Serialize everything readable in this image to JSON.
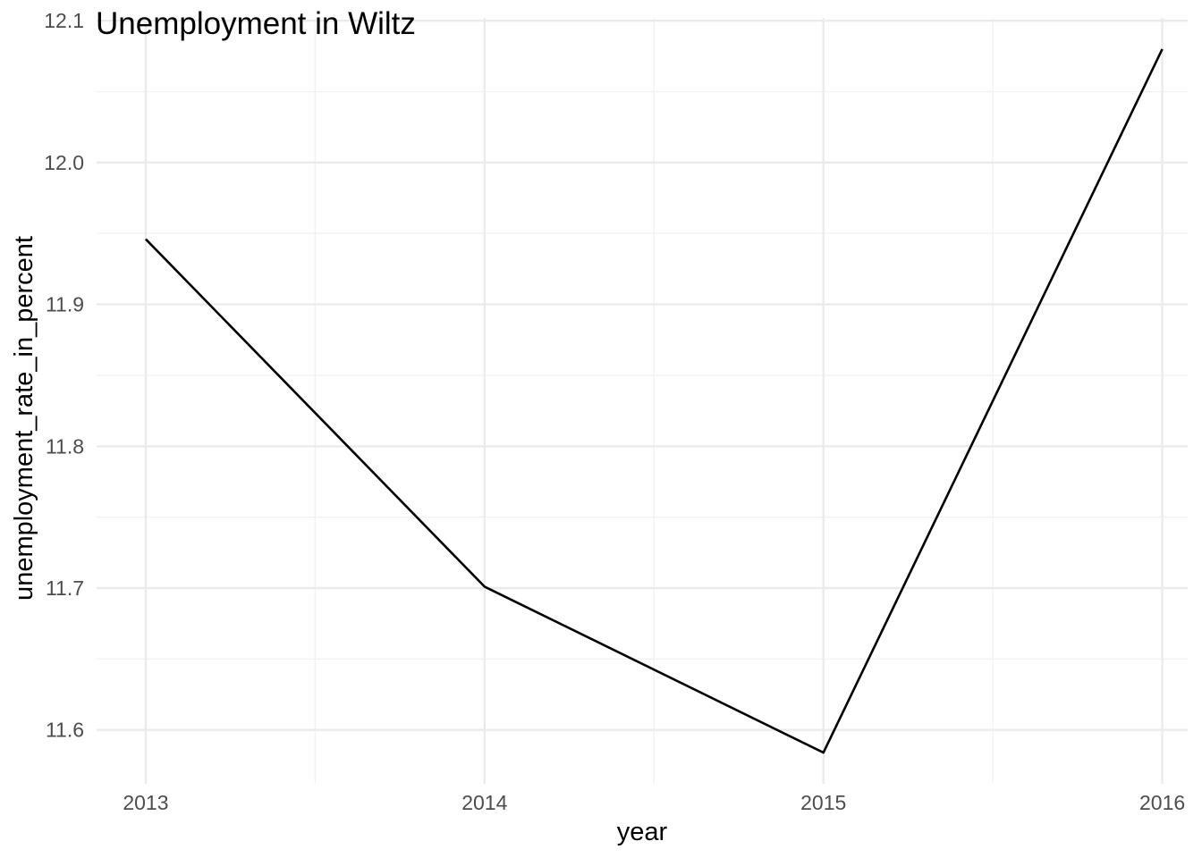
{
  "chart_data": {
    "type": "line",
    "title": "Unemployment in Wiltz",
    "xlabel": "year",
    "ylabel": "unemployment_rate_in_percent",
    "x": [
      2013,
      2014,
      2015,
      2016
    ],
    "series": [
      {
        "values": [
          11.946,
          11.701,
          11.584,
          12.08
        ]
      }
    ],
    "xlim": [
      2012.855,
      2016.075
    ],
    "ylim": [
      11.562,
      12.102
    ],
    "x_ticks": [
      2013,
      2014,
      2015,
      2016
    ],
    "x_tick_labels": [
      "2013",
      "2014",
      "2015",
      "2016"
    ],
    "y_ticks": [
      11.6,
      11.7,
      11.8,
      11.9,
      12.0,
      12.1
    ],
    "y_tick_labels": [
      "11.6",
      "11.7",
      "11.8",
      "11.9",
      "12.0",
      "12.1"
    ],
    "grid": true,
    "line_color": "#000000",
    "grid_color": "#ebebeb"
  }
}
